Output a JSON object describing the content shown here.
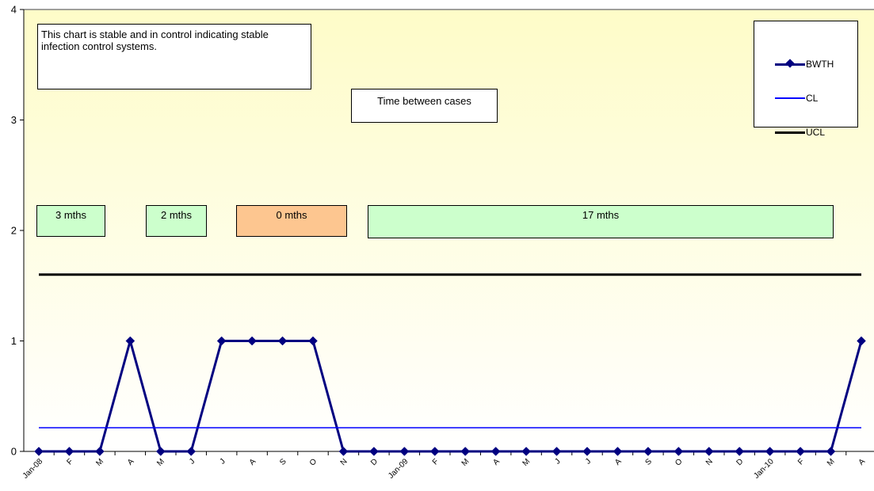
{
  "chart_data": {
    "type": "line",
    "categories": [
      "Jan-08",
      "F",
      "M",
      "A",
      "M",
      "J",
      "J",
      "A",
      "S",
      "O",
      "N",
      "D",
      "Jan-09",
      "F",
      "M",
      "A",
      "M",
      "J",
      "J",
      "A",
      "S",
      "O",
      "N",
      "D",
      "Jan-10",
      "F",
      "M",
      "A"
    ],
    "series": [
      {
        "name": "BWTH",
        "values": [
          0,
          0,
          0,
          1,
          0,
          0,
          1,
          1,
          1,
          1,
          0,
          0,
          0,
          0,
          0,
          0,
          0,
          0,
          0,
          0,
          0,
          0,
          0,
          0,
          0,
          0,
          0,
          1
        ],
        "color": "#000080",
        "marker": "diamond"
      },
      {
        "name": "CL",
        "values": [
          0.214,
          0.214,
          0.214,
          0.214,
          0.214,
          0.214,
          0.214,
          0.214,
          0.214,
          0.214,
          0.214,
          0.214,
          0.214,
          0.214,
          0.214,
          0.214,
          0.214,
          0.214,
          0.214,
          0.214,
          0.214,
          0.214,
          0.214,
          0.214,
          0.214,
          0.214,
          0.214,
          0.214
        ],
        "color": "#0000ff"
      },
      {
        "name": "UCL",
        "values": [
          1.6,
          1.6,
          1.6,
          1.6,
          1.6,
          1.6,
          1.6,
          1.6,
          1.6,
          1.6,
          1.6,
          1.6,
          1.6,
          1.6,
          1.6,
          1.6,
          1.6,
          1.6,
          1.6,
          1.6,
          1.6,
          1.6,
          1.6,
          1.6,
          1.6,
          1.6,
          1.6,
          1.6
        ],
        "color": "#000000"
      }
    ],
    "yticks": [
      0,
      1,
      2,
      3,
      4
    ],
    "ylim": [
      0,
      4
    ],
    "grid": false,
    "legend": "top-right",
    "background_gradient": [
      "#fefcc8",
      "#ffffff"
    ]
  },
  "annotations": {
    "note": "This chart is stable and in control indicating stable infection control systems.",
    "title_box": "Time between cases"
  },
  "periods": [
    {
      "label": "3 mths",
      "color": "#ccffcc"
    },
    {
      "label": "2 mths",
      "color": "#ccffcc"
    },
    {
      "label": "0 mths",
      "color": "#fdc690"
    },
    {
      "label": "17 mths",
      "color": "#ccffcc"
    }
  ],
  "legend": {
    "items": [
      {
        "label": "BWTH"
      },
      {
        "label": "CL"
      },
      {
        "label": "UCL"
      }
    ]
  }
}
